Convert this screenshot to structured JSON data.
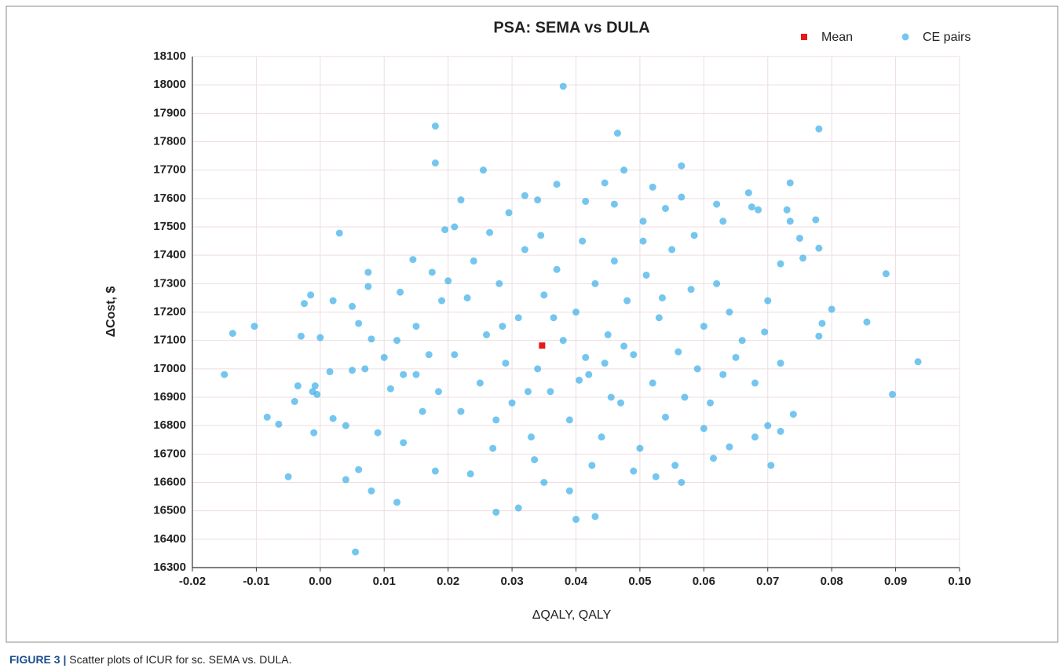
{
  "chart_data": {
    "type": "scatter",
    "title": "PSA: SEMA vs DULA",
    "x_label": "ΔQALY, QALY",
    "y_label": "ΔCost, $",
    "caption_label": "FIGURE 3 |",
    "caption_text": "Scatter plots of ICUR for sc. SEMA vs. DULA.",
    "xlim": [
      -0.02,
      0.1
    ],
    "xticks": [
      -0.02,
      -0.01,
      {
        "value": 0,
        "label": "0.00"
      },
      0.01,
      0.02,
      0.03,
      0.04,
      0.05,
      0.06,
      0.07,
      0.08,
      0.09,
      {
        "value": 0.1,
        "label": "0.10"
      }
    ],
    "ylim": [
      16300,
      18100
    ],
    "yticks": [
      16300,
      16400,
      16500,
      16600,
      16700,
      16800,
      16900,
      17000,
      17100,
      17200,
      17300,
      17400,
      17500,
      17600,
      17700,
      17800,
      17900,
      18000,
      18100
    ],
    "grid": true,
    "legend": "top-right",
    "series": [
      {
        "name": "Mean",
        "color": "#e8191b",
        "marker": "square",
        "x": [
          0.0347
        ],
        "values": [
          17082
        ]
      },
      {
        "name": "CE pairs",
        "color": "#3aaee8",
        "marker": "circle",
        "x": [
          -0.015,
          -0.0137,
          -0.0103,
          -0.0083,
          -0.0065,
          -0.005,
          -0.004,
          -0.0035,
          -0.003,
          -0.0025,
          -0.0015,
          -0.0012,
          -0.001,
          -0.0008,
          -0.0005,
          0.0,
          0.0015,
          0.002,
          0.002,
          0.003,
          0.004,
          0.004,
          0.005,
          0.005,
          0.0055,
          0.006,
          0.006,
          0.007,
          0.0075,
          0.0075,
          0.008,
          0.008,
          0.009,
          0.01,
          0.011,
          0.012,
          0.0125,
          0.013,
          0.0145,
          0.015,
          0.0175,
          0.018,
          0.018,
          0.018,
          0.019,
          0.0195,
          0.021,
          0.022,
          0.0235,
          0.0255,
          0.0275,
          0.0295,
          0.031,
          0.032,
          0.034,
          0.035,
          0.037,
          0.038,
          0.039,
          0.04,
          0.0415,
          0.043,
          0.0445,
          0.046,
          0.0465,
          0.0475,
          0.049,
          0.0505,
          0.052,
          0.0525,
          0.054,
          0.0555,
          0.0565,
          0.0565,
          0.0565,
          0.0585,
          0.06,
          0.0615,
          0.062,
          0.063,
          0.064,
          0.065,
          0.067,
          0.0675,
          0.068,
          0.0685,
          0.0695,
          0.07,
          0.0705,
          0.072,
          0.072,
          0.073,
          0.0735,
          0.0735,
          0.074,
          0.075,
          0.0755,
          0.0775,
          0.078,
          0.078,
          0.078,
          0.0785,
          0.08,
          0.0855,
          0.0885,
          0.0895,
          0.0935,
          0.021,
          0.022,
          0.023,
          0.024,
          0.025,
          0.026,
          0.027,
          0.028,
          0.029,
          0.03,
          0.031,
          0.032,
          0.033,
          0.034,
          0.035,
          0.036,
          0.037,
          0.038,
          0.039,
          0.04,
          0.041,
          0.042,
          0.043,
          0.044,
          0.045,
          0.046,
          0.047,
          0.048,
          0.049,
          0.05,
          0.051,
          0.052,
          0.053,
          0.054,
          0.055,
          0.056,
          0.057,
          0.058,
          0.059,
          0.06,
          0.061,
          0.062,
          0.063,
          0.064,
          0.066,
          0.068,
          0.07,
          0.072,
          0.015,
          0.016,
          0.017,
          0.0185,
          0.02,
          0.013,
          0.012,
          0.0265,
          0.0345,
          0.0425,
          0.0505,
          0.0335,
          0.0405,
          0.0445,
          0.0365,
          0.0285,
          0.0325,
          0.0415,
          0.0475,
          0.0535,
          0.0275,
          0.0455
        ],
        "values": [
          16980,
          17125,
          17150,
          16830,
          16805,
          16620,
          16885,
          16940,
          17115,
          17230,
          17260,
          16920,
          16775,
          16940,
          16910,
          17110,
          16990,
          17240,
          16825,
          17478,
          16610,
          16800,
          17220,
          16995,
          16355,
          16645,
          17160,
          17000,
          17290,
          17340,
          16570,
          17105,
          16775,
          17040,
          16930,
          16530,
          17270,
          16740,
          17385,
          16980,
          17340,
          17725,
          17855,
          16640,
          17240,
          17490,
          17500,
          17595,
          16630,
          17700,
          16495,
          17550,
          16510,
          17610,
          17595,
          16600,
          17650,
          17995,
          16570,
          16470,
          17590,
          16480,
          17655,
          17580,
          17830,
          17700,
          16640,
          17520,
          17640,
          16620,
          17565,
          16660,
          17715,
          17605,
          16600,
          17470,
          16790,
          16685,
          17580,
          17520,
          16725,
          17040,
          17620,
          17570,
          16760,
          17560,
          17130,
          16800,
          16660,
          17370,
          16780,
          17560,
          17655,
          17520,
          16840,
          17460,
          17390,
          17525,
          17845,
          17425,
          17115,
          17160,
          17210,
          17165,
          17335,
          16910,
          17025,
          17050,
          16850,
          17250,
          17380,
          16950,
          17120,
          16720,
          17300,
          17020,
          16880,
          17180,
          17420,
          16760,
          17000,
          17260,
          16920,
          17350,
          17100,
          16820,
          17200,
          17450,
          16980,
          17300,
          16760,
          17120,
          17380,
          16880,
          17240,
          17050,
          16720,
          17330,
          16950,
          17180,
          16830,
          17420,
          17060,
          16900,
          17280,
          17000,
          17150,
          16880,
          17300,
          16980,
          17200,
          17100,
          16950,
          17240,
          17020,
          17150,
          16850,
          17050,
          16920,
          17310,
          16980,
          17100,
          17480,
          17470,
          16660,
          17450,
          16680,
          16960,
          17020,
          17180,
          17150,
          16920,
          17040,
          17080,
          17250,
          16820,
          16900
        ]
      }
    ]
  }
}
